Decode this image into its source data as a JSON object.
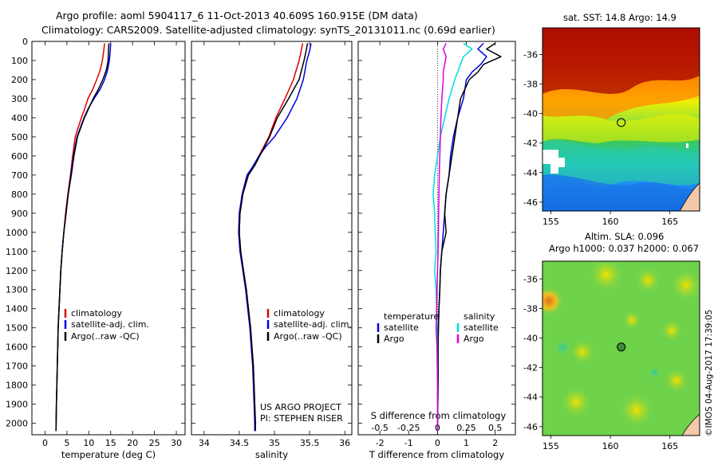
{
  "header": {
    "line1": "Argo profile: aoml 5904117_6 11-Oct-2013 40.609S 160.915E (DM data)",
    "line2": "Climatology: CARS2009. Satellite-adjusted climatology: synTS_20131011.nc (0.69d earlier)"
  },
  "colors": {
    "climatology": "#dd0000",
    "satellite": "#0000dd",
    "argo": "#000000",
    "salinity_satellite": "#00dddd",
    "salinity_argo": "#dd00dd"
  },
  "chart_data": [
    {
      "type": "line",
      "xlabel": "temperature (deg C)",
      "ylabel": "",
      "xticks": [
        0,
        5,
        10,
        15,
        20,
        25,
        30
      ],
      "yticks": [
        0,
        100,
        200,
        300,
        400,
        500,
        600,
        700,
        800,
        900,
        1000,
        1100,
        1200,
        1300,
        1400,
        1500,
        1600,
        1700,
        1800,
        1900,
        2000
      ],
      "xlim": [
        -3,
        32
      ],
      "ylim": [
        2060,
        0
      ],
      "legend": [
        "climatology",
        "satellite-adj. clim.",
        "Argo(..raw -QC)"
      ],
      "series": [
        {
          "name": "climatology",
          "color": "#dd0000",
          "x": [
            13.6,
            13.4,
            13.1,
            12.6,
            11.8,
            10.9,
            9.8,
            9.1,
            8.3,
            7.6,
            6.9,
            6.3,
            5.8,
            5.2,
            4.7,
            4.3,
            3.9,
            3.6,
            3.4,
            3.2,
            3.0,
            2.9,
            2.8,
            2.7,
            2.6,
            2.5
          ],
          "y": [
            10,
            50,
            100,
            150,
            200,
            250,
            300,
            350,
            400,
            450,
            500,
            600,
            700,
            800,
            900,
            1000,
            1100,
            1200,
            1300,
            1400,
            1500,
            1600,
            1700,
            1800,
            1900,
            2040
          ]
        },
        {
          "name": "satellite-adj. clim.",
          "color": "#0000dd",
          "x": [
            15.0,
            14.9,
            14.7,
            14.3,
            13.6,
            12.6,
            11.2,
            9.9,
            8.9,
            8.1,
            7.3,
            6.5,
            5.9,
            5.3,
            4.8,
            4.3,
            3.9,
            3.6,
            3.4,
            3.2,
            3.0,
            2.9,
            2.8,
            2.7,
            2.6,
            2.5
          ],
          "y": [
            10,
            50,
            100,
            150,
            200,
            250,
            300,
            350,
            400,
            450,
            500,
            600,
            700,
            800,
            900,
            1000,
            1100,
            1200,
            1300,
            1400,
            1500,
            1600,
            1700,
            1800,
            1900,
            2040
          ]
        },
        {
          "name": "Argo(..raw -QC)",
          "color": "#000000",
          "x": [
            14.6,
            14.5,
            14.4,
            14.0,
            13.2,
            12.2,
            11.0,
            10.0,
            9.0,
            8.2,
            7.4,
            6.6,
            6.0,
            5.3,
            4.8,
            4.3,
            3.9,
            3.6,
            3.4,
            3.2,
            3.0,
            2.9,
            2.8,
            2.7,
            2.6,
            2.5
          ],
          "y": [
            10,
            50,
            100,
            150,
            200,
            250,
            300,
            350,
            400,
            450,
            500,
            600,
            700,
            800,
            900,
            1000,
            1100,
            1200,
            1300,
            1400,
            1500,
            1600,
            1700,
            1800,
            1900,
            2040
          ]
        }
      ]
    },
    {
      "type": "line",
      "xlabel": "salinity",
      "ylabel": "",
      "xticks": [
        34,
        34.5,
        35,
        35.5,
        36
      ],
      "xtick_labels": [
        "34",
        "34.5",
        "35",
        "35.5",
        "36"
      ],
      "xlim": [
        33.82,
        36.1
      ],
      "ylim": [
        2060,
        0
      ],
      "legend": [
        "climatology",
        "satellite-adj. clim.",
        "Argo(..raw -QC)"
      ],
      "annotation": [
        "US ARGO PROJECT",
        "PI: STEPHEN RISER"
      ],
      "series": [
        {
          "name": "climatology",
          "color": "#dd0000",
          "x": [
            35.4,
            35.38,
            35.35,
            35.27,
            35.15,
            35.02,
            34.92,
            34.85,
            34.78,
            34.71,
            34.62,
            34.55,
            34.51,
            34.5,
            34.52,
            34.56,
            34.6,
            34.63,
            34.66,
            34.68,
            34.7,
            34.71,
            34.72,
            34.73,
            34.73
          ],
          "y": [
            10,
            50,
            100,
            200,
            300,
            400,
            500,
            550,
            600,
            650,
            700,
            800,
            900,
            1000,
            1100,
            1200,
            1300,
            1400,
            1500,
            1600,
            1700,
            1800,
            1900,
            2000,
            2040
          ]
        },
        {
          "name": "satellite-adj. clim.",
          "color": "#0000dd",
          "x": [
            35.52,
            35.5,
            35.46,
            35.41,
            35.32,
            35.18,
            35.0,
            34.88,
            34.78,
            34.7,
            34.61,
            34.54,
            34.5,
            34.49,
            34.51,
            34.55,
            34.59,
            34.62,
            34.65,
            34.67,
            34.69,
            34.7,
            34.71,
            34.72,
            34.72
          ],
          "y": [
            10,
            50,
            100,
            200,
            300,
            400,
            500,
            550,
            600,
            650,
            700,
            800,
            900,
            1000,
            1100,
            1200,
            1300,
            1400,
            1500,
            1600,
            1700,
            1800,
            1900,
            2000,
            2040
          ]
        },
        {
          "name": "Argo(..raw -QC)",
          "color": "#000000",
          "x": [
            35.47,
            35.45,
            35.42,
            35.35,
            35.2,
            35.04,
            34.93,
            34.86,
            34.79,
            34.72,
            34.63,
            34.55,
            34.51,
            34.5,
            34.52,
            34.56,
            34.6,
            34.63,
            34.66,
            34.68,
            34.7,
            34.71,
            34.72,
            34.73,
            34.73
          ],
          "y": [
            10,
            50,
            100,
            200,
            300,
            400,
            500,
            550,
            600,
            650,
            700,
            800,
            900,
            1000,
            1100,
            1200,
            1300,
            1400,
            1500,
            1600,
            1700,
            1800,
            1900,
            2000,
            2040
          ]
        }
      ]
    },
    {
      "type": "line",
      "xlabel": "T difference from climatology",
      "xlabel_top": "S difference from climatology",
      "xticks": [
        -2,
        -1,
        0,
        1,
        2
      ],
      "xtick_labels": [
        "-2",
        "-1",
        "0",
        "1",
        "2"
      ],
      "xticks_top": [
        -2,
        -1,
        0,
        1,
        2
      ],
      "xtick_labels_top": [
        "-0.5",
        "-0.25",
        "0",
        "0.25",
        "0.5"
      ],
      "xlim": [
        -2.75,
        2.7
      ],
      "ylim": [
        2060,
        0
      ],
      "legend_left_title": "temperature",
      "legend_right_title": "salinity",
      "legend": [
        "satellite",
        "Argo",
        "satellite",
        "Argo"
      ],
      "series": [
        {
          "name": "satellite",
          "color": "#0000dd",
          "x": [
            1.6,
            1.4,
            1.7,
            1.5,
            1.2,
            1.0,
            0.9,
            0.7,
            0.55,
            0.45,
            0.4,
            0.3,
            0.25,
            0.2,
            0.15,
            0.1,
            0.08,
            0.05,
            0.03,
            0.02,
            0.02,
            0.01,
            0.0
          ],
          "y": [
            10,
            40,
            80,
            120,
            160,
            200,
            300,
            400,
            500,
            600,
            700,
            800,
            900,
            1000,
            1100,
            1200,
            1300,
            1400,
            1500,
            1600,
            1800,
            1900,
            2040
          ]
        },
        {
          "name": "Argo",
          "color": "#000000",
          "x": [
            2.0,
            1.7,
            2.2,
            1.6,
            1.4,
            1.1,
            0.8,
            0.7,
            0.6,
            0.5,
            0.4,
            0.3,
            0.25,
            0.3,
            0.15,
            0.1,
            0.08,
            0.05,
            0.03,
            0.02,
            0.02,
            0.01,
            0.0
          ],
          "y": [
            10,
            40,
            80,
            120,
            160,
            200,
            300,
            400,
            500,
            600,
            700,
            800,
            900,
            1000,
            1100,
            1200,
            1300,
            1400,
            1500,
            1600,
            1800,
            1900,
            2040
          ]
        },
        {
          "name": "satellite",
          "color": "#00dddd",
          "x": [
            0.9,
            1.2,
            0.9,
            0.8,
            0.7,
            0.6,
            0.4,
            0.25,
            0.1,
            0.0,
            -0.1,
            -0.15,
            -0.1,
            -0.08,
            -0.05,
            -0.1,
            -0.05,
            -0.03,
            -0.02,
            -0.01,
            0.0,
            0.0,
            0.0
          ],
          "y": [
            10,
            40,
            80,
            120,
            160,
            200,
            300,
            400,
            500,
            600,
            700,
            800,
            900,
            1000,
            1100,
            1200,
            1300,
            1400,
            1500,
            1600,
            1800,
            1900,
            2040
          ]
        },
        {
          "name": "Argo",
          "color": "#dd00dd",
          "x": [
            0.3,
            0.2,
            0.3,
            0.25,
            0.2,
            0.2,
            0.15,
            0.12,
            0.1,
            0.08,
            0.06,
            0.05,
            0.04,
            0.03,
            0.02,
            0.0,
            -0.02,
            -0.03,
            -0.05,
            -0.02,
            0.0,
            0.0,
            0.0
          ],
          "y": [
            10,
            40,
            80,
            120,
            160,
            200,
            300,
            400,
            500,
            600,
            700,
            800,
            900,
            1000,
            1100,
            1200,
            1300,
            1400,
            1500,
            1600,
            1800,
            1900,
            2040
          ]
        }
      ]
    },
    {
      "type": "heatmap",
      "title": "sat. SST: 14.8  Argo: 14.9",
      "xticks": [
        155,
        160,
        165
      ],
      "yticks": [
        -36,
        -38,
        -40,
        -42,
        -44,
        -46
      ],
      "xlim": [
        154.3,
        167.5
      ],
      "ylim": [
        -46.6,
        -34.2
      ],
      "marker": {
        "lon": 160.915,
        "lat": -40.609
      }
    },
    {
      "type": "heatmap",
      "title": "Altim. SLA: 0.096",
      "subtitle": "Argo h1000: 0.037 h2000: 0.067",
      "xticks": [
        155,
        160,
        165
      ],
      "yticks": [
        -36,
        -38,
        -40,
        -42,
        -44,
        -46
      ],
      "xlim": [
        154.3,
        167.5
      ],
      "ylim": [
        -46.6,
        -34.8
      ],
      "marker": {
        "lon": 160.915,
        "lat": -40.609
      }
    }
  ],
  "credit": "©IMOS 04-Aug-2017 17:39:05"
}
